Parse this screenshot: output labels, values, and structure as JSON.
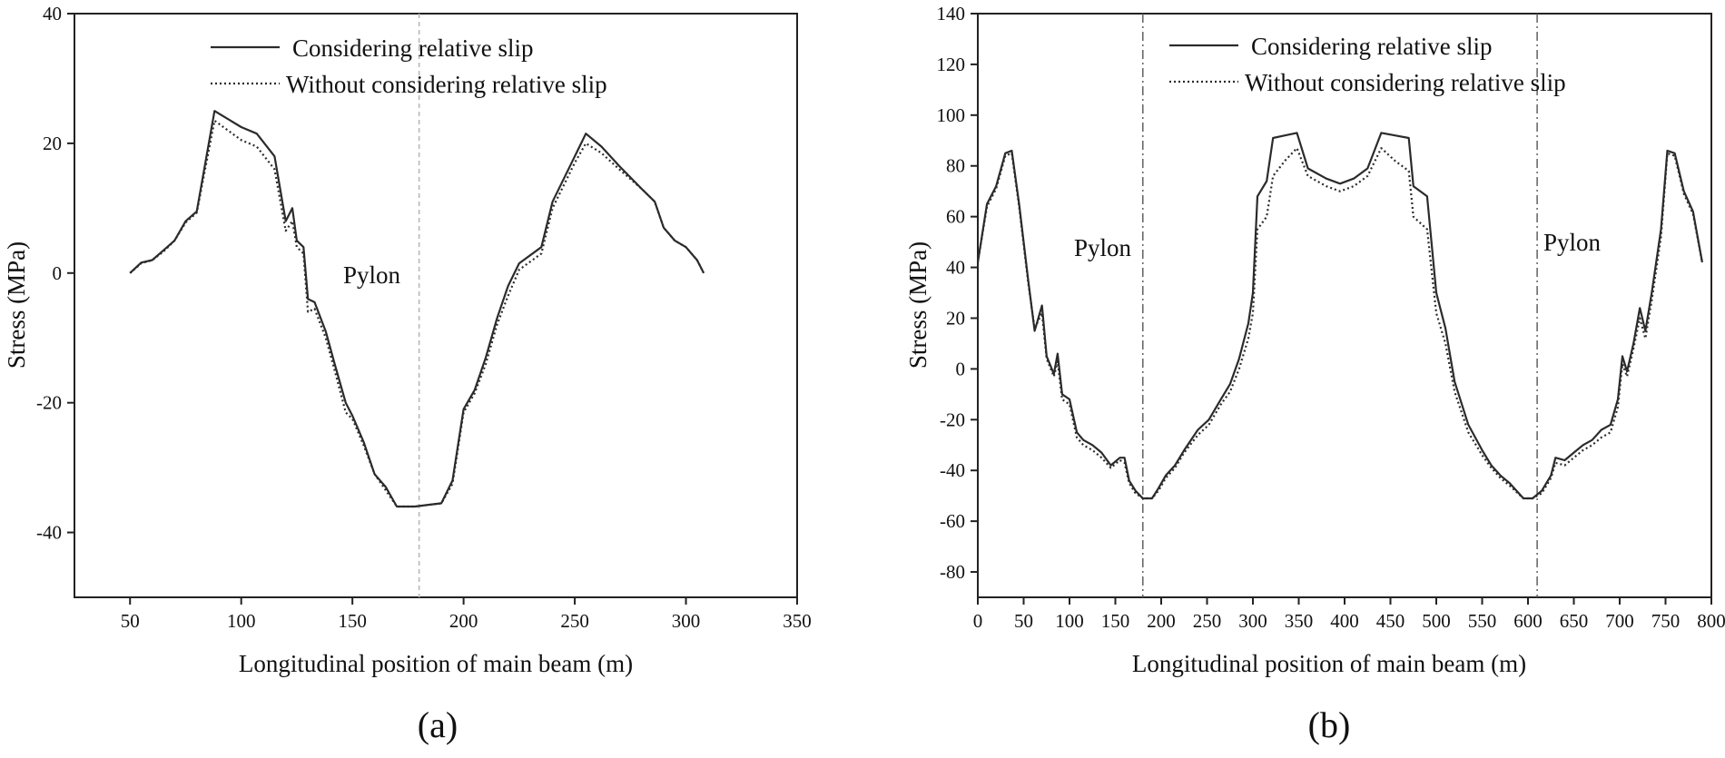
{
  "chart_data": [
    {
      "panel": "(a)",
      "type": "line",
      "xlabel": "Longitudinal position of main beam (m)",
      "ylabel": "Stress (MPa)",
      "xlim": [
        25,
        350
      ],
      "ylim": [
        -50,
        40
      ],
      "xticks": [
        50,
        100,
        150,
        200,
        250,
        300,
        350
      ],
      "yticks": [
        -40,
        -20,
        0,
        20,
        40
      ],
      "legend": "top-center",
      "annotations": [
        {
          "text": "Pylon",
          "x": 180
        }
      ],
      "series": [
        {
          "name": "Considering relative slip",
          "style": "solid",
          "points": [
            [
              50,
              0
            ],
            [
              55,
              1.6
            ],
            [
              60,
              2
            ],
            [
              65,
              3.5
            ],
            [
              70,
              5
            ],
            [
              75,
              8
            ],
            [
              80,
              9.5
            ],
            [
              88,
              25
            ],
            [
              100,
              22.5
            ],
            [
              107,
              21.5
            ],
            [
              115,
              18
            ],
            [
              120,
              8
            ],
            [
              123,
              10
            ],
            [
              125,
              5
            ],
            [
              128,
              4
            ],
            [
              130,
              -4
            ],
            [
              133,
              -4.5
            ],
            [
              138,
              -9
            ],
            [
              142,
              -14
            ],
            [
              147,
              -20
            ],
            [
              150,
              -22
            ],
            [
              155,
              -26
            ],
            [
              160,
              -31
            ],
            [
              165,
              -33
            ],
            [
              170,
              -36
            ],
            [
              178,
              -36
            ],
            [
              190,
              -35.5
            ],
            [
              195,
              -32
            ],
            [
              200,
              -21
            ],
            [
              205,
              -18
            ],
            [
              210,
              -13
            ],
            [
              215,
              -7
            ],
            [
              220,
              -2
            ],
            [
              225,
              1.5
            ],
            [
              235,
              4
            ],
            [
              240,
              11
            ],
            [
              250,
              18
            ],
            [
              255,
              21.5
            ],
            [
              262,
              19.5
            ],
            [
              270,
              16.5
            ],
            [
              280,
              13
            ],
            [
              286,
              11
            ],
            [
              290,
              7
            ],
            [
              295,
              5
            ],
            [
              300,
              4
            ],
            [
              305,
              2
            ],
            [
              308,
              0
            ]
          ]
        },
        {
          "name": "Without considering relative slip",
          "style": "dotted",
          "points": [
            [
              50,
              0
            ],
            [
              55,
              1.5
            ],
            [
              60,
              2
            ],
            [
              65,
              3.3
            ],
            [
              70,
              5
            ],
            [
              75,
              7.8
            ],
            [
              80,
              9.3
            ],
            [
              88,
              23.5
            ],
            [
              100,
              20.5
            ],
            [
              107,
              19.5
            ],
            [
              115,
              16
            ],
            [
              120,
              6.5
            ],
            [
              123,
              8
            ],
            [
              125,
              4
            ],
            [
              128,
              3
            ],
            [
              130,
              -6
            ],
            [
              133,
              -5.5
            ],
            [
              138,
              -10
            ],
            [
              142,
              -15
            ],
            [
              147,
              -21.5
            ],
            [
              150,
              -22.5
            ],
            [
              155,
              -26.5
            ],
            [
              160,
              -31
            ],
            [
              165,
              -33.5
            ],
            [
              170,
              -36
            ],
            [
              178,
              -36
            ],
            [
              190,
              -35.5
            ],
            [
              195,
              -32.5
            ],
            [
              200,
              -21.5
            ],
            [
              205,
              -18.5
            ],
            [
              210,
              -14
            ],
            [
              215,
              -8
            ],
            [
              220,
              -3.5
            ],
            [
              225,
              0.5
            ],
            [
              235,
              3
            ],
            [
              240,
              10
            ],
            [
              250,
              17
            ],
            [
              255,
              20
            ],
            [
              262,
              18.5
            ],
            [
              270,
              16
            ],
            [
              280,
              13
            ],
            [
              286,
              11
            ],
            [
              290,
              7
            ],
            [
              295,
              5
            ],
            [
              300,
              4
            ],
            [
              305,
              2
            ],
            [
              308,
              0
            ]
          ]
        }
      ]
    },
    {
      "panel": "(b)",
      "type": "line",
      "xlabel": "Longitudinal position of main beam (m)",
      "ylabel": "Stress (MPa)",
      "xlim": [
        0,
        800
      ],
      "ylim": [
        -90,
        140
      ],
      "xticks": [
        0,
        50,
        100,
        150,
        200,
        250,
        300,
        350,
        400,
        450,
        500,
        550,
        600,
        650,
        700,
        750,
        800
      ],
      "yticks": [
        -80,
        -60,
        -40,
        -20,
        0,
        20,
        40,
        60,
        80,
        100,
        120,
        140
      ],
      "legend": "top-center",
      "annotations": [
        {
          "text": "Pylon",
          "x": 180
        },
        {
          "text": "Pylon",
          "x": 610
        }
      ],
      "series": [
        {
          "name": "Considering relative slip",
          "style": "solid",
          "points": [
            [
              0,
              42
            ],
            [
              10,
              65
            ],
            [
              20,
              72
            ],
            [
              30,
              85
            ],
            [
              37,
              86
            ],
            [
              45,
              65
            ],
            [
              55,
              35
            ],
            [
              62,
              15
            ],
            [
              70,
              25
            ],
            [
              75,
              5
            ],
            [
              83,
              -2
            ],
            [
              87,
              6
            ],
            [
              92,
              -10
            ],
            [
              100,
              -12
            ],
            [
              108,
              -25
            ],
            [
              115,
              -28
            ],
            [
              125,
              -30
            ],
            [
              135,
              -33
            ],
            [
              145,
              -38
            ],
            [
              155,
              -35
            ],
            [
              160,
              -35
            ],
            [
              165,
              -44
            ],
            [
              172,
              -48
            ],
            [
              180,
              -51
            ],
            [
              190,
              -51
            ],
            [
              197,
              -47
            ],
            [
              205,
              -42
            ],
            [
              215,
              -38
            ],
            [
              225,
              -32
            ],
            [
              240,
              -24
            ],
            [
              252,
              -20
            ],
            [
              265,
              -12
            ],
            [
              275,
              -6
            ],
            [
              285,
              4
            ],
            [
              295,
              18
            ],
            [
              300,
              30
            ],
            [
              305,
              68
            ],
            [
              315,
              74
            ],
            [
              322,
              91
            ],
            [
              335,
              92
            ],
            [
              348,
              93
            ],
            [
              360,
              79
            ],
            [
              380,
              75
            ],
            [
              395,
              73
            ],
            [
              410,
              75
            ],
            [
              425,
              79
            ],
            [
              440,
              93
            ],
            [
              455,
              92
            ],
            [
              470,
              91
            ],
            [
              475,
              72
            ],
            [
              490,
              68
            ],
            [
              500,
              30
            ],
            [
              510,
              16
            ],
            [
              520,
              -5
            ],
            [
              535,
              -22
            ],
            [
              550,
              -32
            ],
            [
              560,
              -38
            ],
            [
              570,
              -42
            ],
            [
              580,
              -45
            ],
            [
              595,
              -51
            ],
            [
              605,
              -51
            ],
            [
              615,
              -48
            ],
            [
              625,
              -42
            ],
            [
              630,
              -35
            ],
            [
              640,
              -36
            ],
            [
              650,
              -33
            ],
            [
              660,
              -30
            ],
            [
              670,
              -28
            ],
            [
              680,
              -24
            ],
            [
              690,
              -22
            ],
            [
              698,
              -12
            ],
            [
              703,
              5
            ],
            [
              708,
              -1
            ],
            [
              715,
              10
            ],
            [
              722,
              24
            ],
            [
              728,
              15
            ],
            [
              735,
              30
            ],
            [
              745,
              55
            ],
            [
              752,
              86
            ],
            [
              760,
              85
            ],
            [
              770,
              70
            ],
            [
              780,
              62
            ],
            [
              790,
              42
            ]
          ]
        },
        {
          "name": "Without considering relative slip",
          "style": "dotted",
          "points": [
            [
              0,
              42
            ],
            [
              10,
              64
            ],
            [
              20,
              71
            ],
            [
              30,
              84
            ],
            [
              37,
              85
            ],
            [
              45,
              64
            ],
            [
              55,
              34
            ],
            [
              62,
              16
            ],
            [
              70,
              22
            ],
            [
              75,
              4
            ],
            [
              83,
              -3
            ],
            [
              87,
              3
            ],
            [
              92,
              -12
            ],
            [
              100,
              -14
            ],
            [
              108,
              -27
            ],
            [
              115,
              -30
            ],
            [
              125,
              -32
            ],
            [
              135,
              -35
            ],
            [
              145,
              -39
            ],
            [
              155,
              -36
            ],
            [
              160,
              -37
            ],
            [
              165,
              -45
            ],
            [
              172,
              -49
            ],
            [
              180,
              -51
            ],
            [
              190,
              -51
            ],
            [
              197,
              -48
            ],
            [
              205,
              -43
            ],
            [
              215,
              -39
            ],
            [
              225,
              -33
            ],
            [
              240,
              -26
            ],
            [
              252,
              -22
            ],
            [
              265,
              -14
            ],
            [
              275,
              -9
            ],
            [
              285,
              0
            ],
            [
              295,
              12
            ],
            [
              300,
              22
            ],
            [
              305,
              55
            ],
            [
              315,
              60
            ],
            [
              322,
              76
            ],
            [
              335,
              82
            ],
            [
              348,
              87
            ],
            [
              360,
              76
            ],
            [
              380,
              72
            ],
            [
              395,
              70
            ],
            [
              410,
              72
            ],
            [
              425,
              76
            ],
            [
              440,
              87
            ],
            [
              455,
              82
            ],
            [
              470,
              78
            ],
            [
              475,
              60
            ],
            [
              490,
              55
            ],
            [
              500,
              22
            ],
            [
              510,
              10
            ],
            [
              520,
              -9
            ],
            [
              535,
              -25
            ],
            [
              550,
              -34
            ],
            [
              560,
              -39
            ],
            [
              570,
              -43
            ],
            [
              580,
              -46
            ],
            [
              595,
              -51
            ],
            [
              605,
              -51
            ],
            [
              615,
              -49
            ],
            [
              625,
              -43
            ],
            [
              630,
              -37
            ],
            [
              640,
              -38
            ],
            [
              650,
              -35
            ],
            [
              660,
              -32
            ],
            [
              670,
              -30
            ],
            [
              680,
              -27
            ],
            [
              690,
              -25
            ],
            [
              698,
              -15
            ],
            [
              703,
              2
            ],
            [
              708,
              -3
            ],
            [
              715,
              8
            ],
            [
              722,
              20
            ],
            [
              728,
              12
            ],
            [
              735,
              27
            ],
            [
              745,
              52
            ],
            [
              752,
              85
            ],
            [
              760,
              84
            ],
            [
              770,
              69
            ],
            [
              780,
              61
            ],
            [
              790,
              42
            ]
          ]
        }
      ]
    }
  ]
}
